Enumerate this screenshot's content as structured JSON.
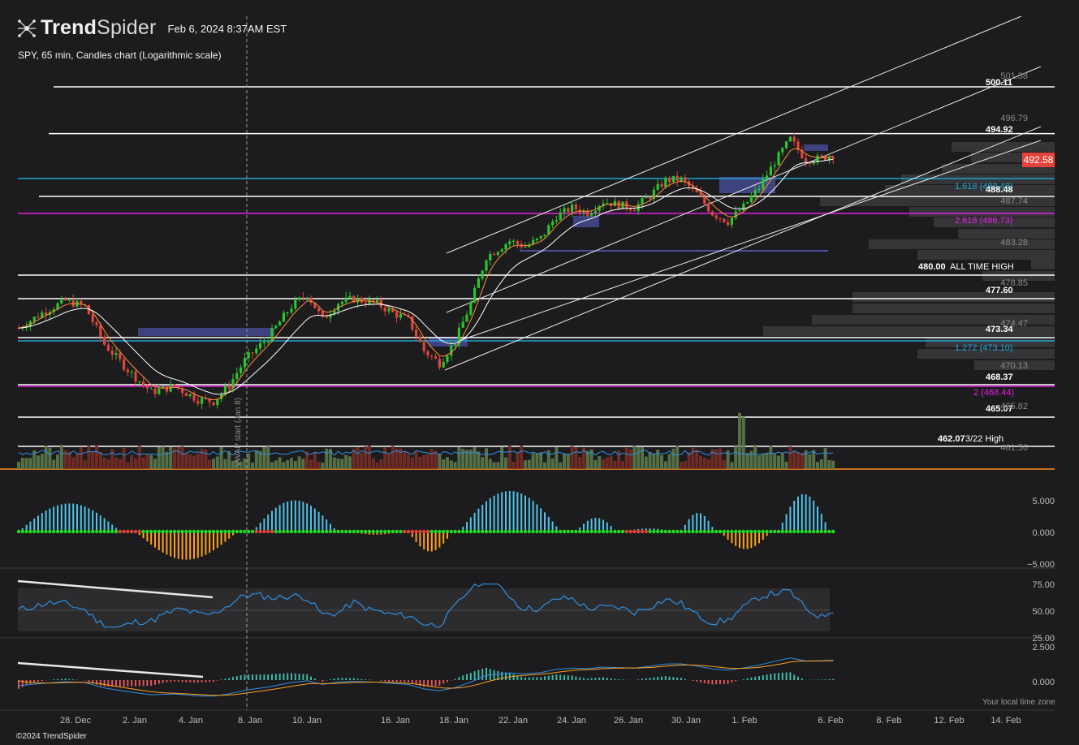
{
  "header": {
    "brand_bold": "Trend",
    "brand_light": "Spider",
    "datetime": "Feb 6, 2024 8:37AM EST",
    "symbol_desc": "SPY, 65 min, Candles chart (Logarithmic scale)"
  },
  "footer": {
    "copyright": "©2024 TrendSpider",
    "timezone_note": "Your local time zone"
  },
  "last_price": "492.58",
  "colors": {
    "background": "#1c1c1e",
    "bull": "#2bc42b",
    "bear": "#e0453a",
    "fib_blue": "#1fa3d6",
    "fib_magenta": "#e01fe0",
    "ema_fast": "#ff8c3a",
    "ema_slow": "#ffffff",
    "osc_up": "#4fc3e8",
    "osc_down": "#ff9f1c",
    "rsi_line": "#2f8fe0"
  },
  "price_axis_labels": [
    "501.38",
    "496.79",
    "487.74",
    "483.28",
    "478.85",
    "474.47",
    "470.13",
    "465.82",
    "461.56"
  ],
  "level_labels": [
    {
      "text": "500.11",
      "color": "#ffffff",
      "bold": true
    },
    {
      "text": "494.92",
      "color": "#ffffff",
      "bold": true
    },
    {
      "text": "1.618 (488.48)",
      "color": "#1fa3d6",
      "bold": false
    },
    {
      "text": "488.48",
      "color": "#ffffff",
      "bold": true
    },
    {
      "text": "2.618 (486.73)",
      "color": "#e01fe0",
      "bold": false
    },
    {
      "text": "480.00",
      "color": "#ffffff",
      "bold": true
    },
    {
      "text": "ALL TIME HIGH",
      "color": "#ffffff",
      "bold": false
    },
    {
      "text": "477.60",
      "color": "#ffffff",
      "bold": true
    },
    {
      "text": "473.34",
      "color": "#ffffff",
      "bold": true
    },
    {
      "text": "1.272 (473.10)",
      "color": "#1fa3d6",
      "bold": false
    },
    {
      "text": "468.37",
      "color": "#ffffff",
      "bold": true
    },
    {
      "text": "2 (468.44)",
      "color": "#e01fe0",
      "bold": false
    },
    {
      "text": "465.07",
      "color": "#ffffff",
      "bold": true
    },
    {
      "text": "462.07",
      "color": "#ffffff",
      "bold": true
    },
    {
      "text": "3/22 High",
      "color": "#ffffff",
      "bold": false
    }
  ],
  "osc_axis_labels": [
    "5.000",
    "0.000",
    "−5.000"
  ],
  "rsi_axis_labels": [
    "75.00",
    "50.00",
    "25.00"
  ],
  "macd_axis_labels": [
    "2.500",
    "0.000"
  ],
  "x_axis_labels": [
    "28. Dec",
    "2. Jan",
    "4. Jan",
    "8. Jan",
    "10. Jan",
    "16. Jan",
    "18. Jan",
    "22. Jan",
    "24. Jan",
    "26. Jan",
    "30. Jan",
    "1. Feb",
    "6. Feb",
    "8. Feb",
    "12. Feb",
    "14. Feb"
  ],
  "vwap_label": "VWAP start (Jan 8)",
  "chart_data": {
    "type": "candlestick",
    "timeframe": "65 min",
    "scale": "log",
    "ylim": [
      461.56,
      501.38
    ],
    "close_path": [
      [
        0,
        473.9
      ],
      [
        6,
        475.5
      ],
      [
        12,
        476.8
      ],
      [
        17,
        476.2
      ],
      [
        22,
        472.2
      ],
      [
        28,
        469.5
      ],
      [
        34,
        467.2
      ],
      [
        40,
        467.8
      ],
      [
        46,
        466.4
      ],
      [
        50,
        466.2
      ],
      [
        54,
        467.9
      ],
      [
        58,
        470.5
      ],
      [
        64,
        472.9
      ],
      [
        70,
        476.2
      ],
      [
        74,
        477.5
      ],
      [
        78,
        474.8
      ],
      [
        82,
        476.6
      ],
      [
        86,
        477.0
      ],
      [
        92,
        476.5
      ],
      [
        96,
        475.5
      ],
      [
        100,
        474.8
      ],
      [
        104,
        471.5
      ],
      [
        108,
        470.2
      ],
      [
        112,
        472.5
      ],
      [
        116,
        476.5
      ],
      [
        120,
        481.5
      ],
      [
        126,
        483.2
      ],
      [
        130,
        482.6
      ],
      [
        134,
        483.5
      ],
      [
        138,
        485.9
      ],
      [
        142,
        486.8
      ],
      [
        146,
        486.3
      ],
      [
        150,
        487.5
      ],
      [
        154,
        487.1
      ],
      [
        158,
        486.8
      ],
      [
        162,
        488.1
      ],
      [
        166,
        489.8
      ],
      [
        170,
        489.9
      ],
      [
        174,
        488.3
      ],
      [
        178,
        486.2
      ],
      [
        182,
        485.3
      ],
      [
        186,
        486.9
      ],
      [
        190,
        489.0
      ],
      [
        194,
        491.8
      ],
      [
        198,
        494.3
      ],
      [
        202,
        492.0
      ],
      [
        206,
        492.2
      ],
      [
        209,
        492.6
      ]
    ]
  }
}
